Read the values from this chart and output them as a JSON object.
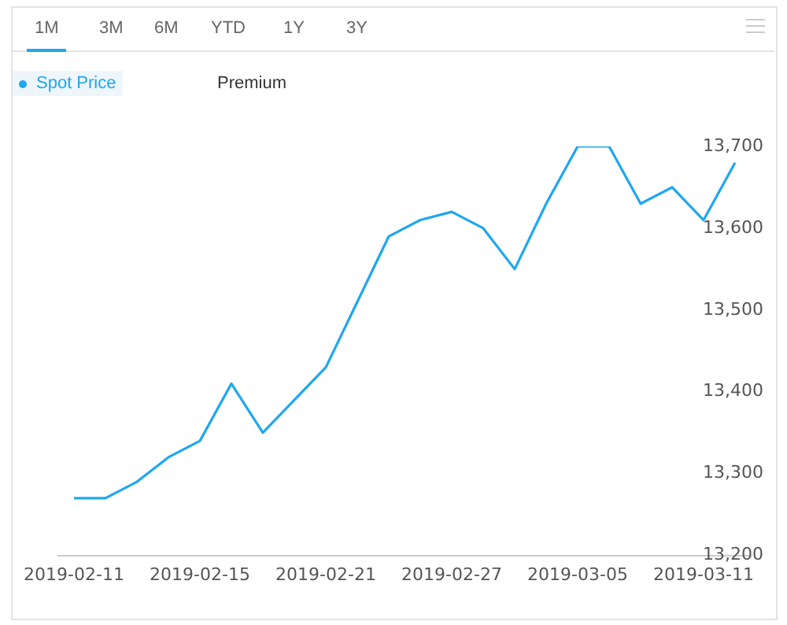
{
  "chart_data": {
    "type": "line",
    "annotations": [
      "1M",
      "3M",
      "6M",
      "YTD",
      "1Y",
      "3Y"
    ],
    "categories": [
      "2019-02-11",
      null,
      null,
      null,
      "2019-02-15",
      null,
      null,
      null,
      "2019-02-21",
      null,
      null,
      null,
      "2019-02-27",
      null,
      null,
      null,
      "2019-03-05",
      null,
      null,
      null,
      "2019-03-11",
      null
    ],
    "series": [
      {
        "name": "Spot Price",
        "color": "#1ea7f0",
        "values": [
          13270,
          13270,
          13290,
          13320,
          13340,
          13410,
          13350,
          13390,
          13430,
          13510,
          13590,
          13610,
          13620,
          13600,
          13550,
          13630,
          13700,
          13700,
          13630,
          13650,
          13610,
          13680
        ]
      },
      {
        "name": "Premium",
        "values": [
          null,
          null,
          null,
          null,
          null,
          null,
          null,
          null,
          null,
          null,
          null,
          null,
          null,
          null,
          null,
          null,
          null,
          null,
          null,
          null,
          null,
          null
        ]
      }
    ],
    "ylim": [
      13200,
      13700
    ],
    "yticks": [
      {
        "value": 13200,
        "label": "13,200"
      },
      {
        "value": 13300,
        "label": "13,300"
      },
      {
        "value": 13400,
        "label": "13,400"
      },
      {
        "value": 13500,
        "label": "13,500"
      },
      {
        "value": 13600,
        "label": "13,600"
      },
      {
        "value": 13700,
        "label": "13,700"
      }
    ],
    "grid": false,
    "legend": "top left",
    "marker": "none"
  }
}
